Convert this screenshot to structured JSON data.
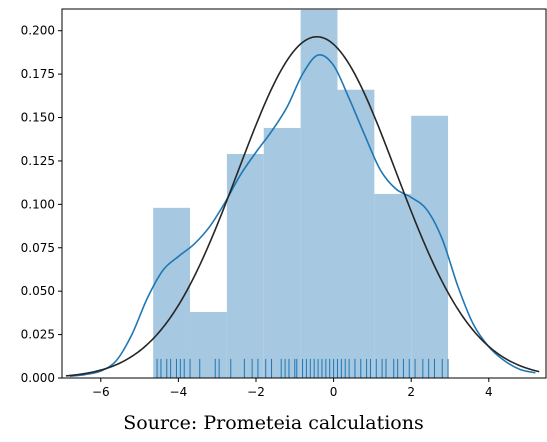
{
  "chart_data": {
    "type": "histogram_with_density",
    "caption": "Source: Prometeia calculations",
    "xlim": [
      -7.0,
      5.5
    ],
    "ylim": [
      0.0,
      0.2125
    ],
    "x_ticks": [
      -6,
      -4,
      -2,
      0,
      2,
      4
    ],
    "x_tick_labels": [
      "−6",
      "−4",
      "−2",
      "0",
      "2",
      "4"
    ],
    "y_ticks": [
      0.0,
      0.025,
      0.05,
      0.075,
      0.1,
      0.125,
      0.15,
      0.175,
      0.2
    ],
    "y_tick_labels": [
      "0.000",
      "0.025",
      "0.050",
      "0.075",
      "0.100",
      "0.125",
      "0.150",
      "0.175",
      "0.200"
    ],
    "grid": false,
    "histogram": {
      "bin_edges": [
        -4.65,
        -3.7,
        -2.75,
        -1.8,
        -0.85,
        0.1,
        1.05,
        2.0,
        2.95
      ],
      "values": [
        0.098,
        0.038,
        0.129,
        0.144,
        0.212,
        0.166,
        0.106,
        0.151
      ],
      "color": "#a6c8e0"
    },
    "kde": {
      "color": "#1f77b4",
      "x": [
        -6.8,
        -6.4,
        -6.0,
        -5.6,
        -5.2,
        -4.8,
        -4.4,
        -4.0,
        -3.6,
        -3.2,
        -2.8,
        -2.4,
        -2.0,
        -1.6,
        -1.2,
        -0.8,
        -0.4,
        0.0,
        0.4,
        0.8,
        1.2,
        1.6,
        2.0,
        2.4,
        2.8,
        3.2,
        3.6,
        4.0,
        4.4,
        4.8,
        5.2
      ],
      "y": [
        0.001,
        0.002,
        0.004,
        0.01,
        0.025,
        0.046,
        0.062,
        0.07,
        0.077,
        0.087,
        0.101,
        0.117,
        0.13,
        0.142,
        0.156,
        0.175,
        0.186,
        0.18,
        0.161,
        0.14,
        0.12,
        0.109,
        0.104,
        0.097,
        0.08,
        0.053,
        0.031,
        0.018,
        0.01,
        0.005,
        0.003
      ]
    },
    "normal_fit": {
      "color": "#262626",
      "mean": -0.43,
      "std": 2.03,
      "x_range": [
        -6.9,
        5.3
      ]
    },
    "rug": {
      "color": "#1f77b4",
      "height": 0.011,
      "x": [
        -4.55,
        -4.45,
        -4.3,
        -4.2,
        -4.05,
        -3.95,
        -3.85,
        -3.7,
        -3.45,
        -3.05,
        -2.95,
        -2.65,
        -2.3,
        -2.1,
        -1.95,
        -1.75,
        -1.6,
        -1.35,
        -1.25,
        -1.15,
        -1.0,
        -0.95,
        -0.8,
        -0.7,
        -0.6,
        -0.5,
        -0.4,
        -0.3,
        -0.2,
        -0.1,
        0.0,
        0.1,
        0.2,
        0.3,
        0.4,
        0.55,
        0.7,
        0.85,
        0.95,
        1.1,
        1.25,
        1.35,
        1.55,
        1.65,
        1.8,
        1.95,
        2.1,
        2.3,
        2.45,
        2.6,
        2.8,
        2.95
      ]
    }
  }
}
